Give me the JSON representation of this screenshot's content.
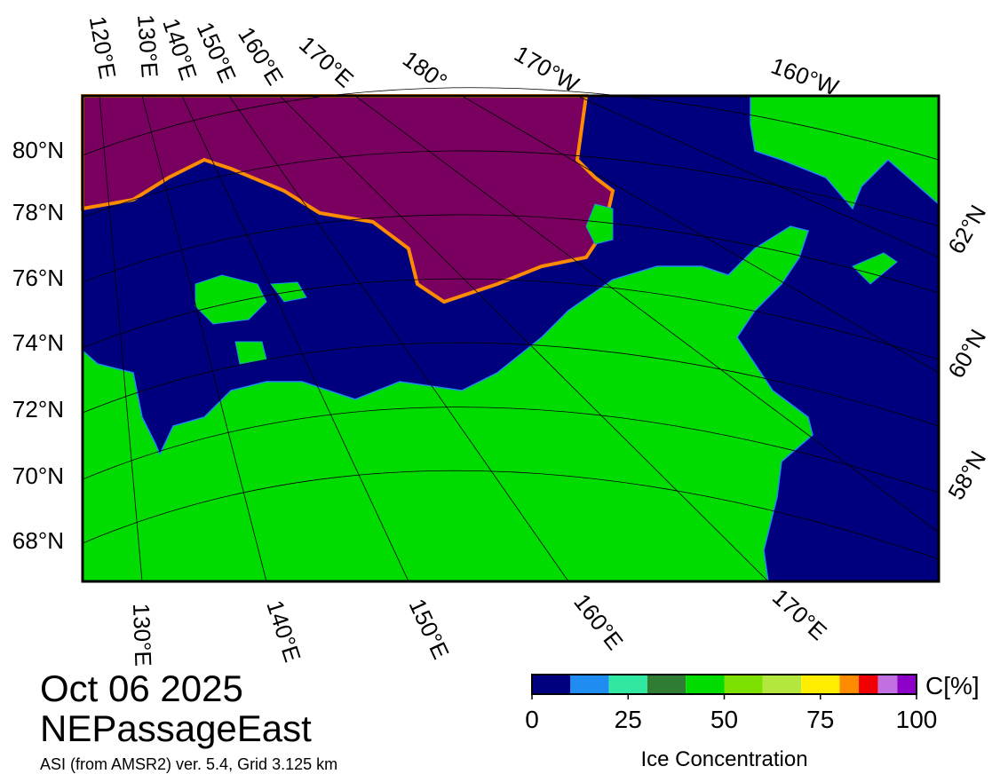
{
  "map": {
    "top_labels": [
      "120°E",
      "130°E",
      "140°E",
      "150°E",
      "160°E",
      "170°E",
      "180°",
      "170°W",
      "160°W"
    ],
    "left_labels": [
      "80°N",
      "78°N",
      "76°N",
      "74°N",
      "72°N",
      "70°N",
      "68°N"
    ],
    "right_labels": [
      "62°N",
      "60°N",
      "58°N"
    ],
    "bottom_labels": [
      "130°E",
      "140°E",
      "150°E",
      "160°E",
      "170°E"
    ]
  },
  "date": "Oct 06 2025",
  "region": "NEPassageEast",
  "source": "ASI (from AMSR2) ver. 5.4,  Grid 3.125 km",
  "colorbar": {
    "bins": [
      0,
      10,
      20,
      30,
      40,
      50,
      60,
      70,
      80,
      85,
      90,
      95,
      100
    ],
    "colors": [
      "#00007f",
      "#1e8cf0",
      "#30e8a0",
      "#2e7d32",
      "#00dc00",
      "#7ee000",
      "#b4e640",
      "#ffee00",
      "#ff8c00",
      "#f00000",
      "#c070e0",
      "#8c00c8"
    ],
    "range": [
      0,
      100
    ],
    "ticks": [
      0,
      25,
      50,
      75,
      100
    ],
    "unit": "C[%]",
    "label": "Ice Concentration"
  }
}
